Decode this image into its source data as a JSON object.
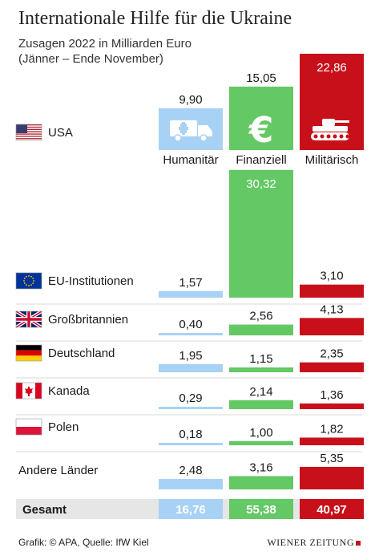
{
  "title": "Internationale Hilfe für die Ukraine",
  "subtitle_line1": "Zusagen 2022 in Milliarden Euro",
  "subtitle_line2": "(Jänner – Ende November)",
  "source": "Grafik: © APA, Quelle: IfW Kiel",
  "logo": "WIENER ZEITUNG",
  "colors": {
    "Humanitär": "#a8d2f5",
    "Finanziell": "#64c864",
    "Militärisch": "#c8101a",
    "total_band": "#e6e6e6"
  },
  "icons": [
    "ambulance-icon",
    "euro-icon",
    "tank-icon"
  ],
  "chart_data": {
    "type": "bar",
    "categories": [
      "Humanitär",
      "Finanziell",
      "Militärisch"
    ],
    "rows": [
      {
        "label": "USA",
        "flag": "us-flag-icon",
        "values": [
          9.9,
          15.05,
          22.86
        ],
        "value_labels": [
          "9,90",
          "15,05",
          "22,86"
        ]
      },
      {
        "label": "EU-Institutionen",
        "flag": "eu-flag-icon",
        "values": [
          1.57,
          30.32,
          3.1
        ],
        "value_labels": [
          "1,57",
          "30,32",
          "3,10"
        ]
      },
      {
        "label": "Großbritannien",
        "flag": "uk-flag-icon",
        "values": [
          0.4,
          2.56,
          4.13
        ],
        "value_labels": [
          "0,40",
          "2,56",
          "4,13"
        ]
      },
      {
        "label": "Deutschland",
        "flag": "de-flag-icon",
        "values": [
          1.95,
          1.15,
          2.35
        ],
        "value_labels": [
          "1,95",
          "1,15",
          "2,35"
        ]
      },
      {
        "label": "Kanada",
        "flag": "ca-flag-icon",
        "values": [
          0.29,
          2.14,
          1.36
        ],
        "value_labels": [
          "0,29",
          "2,14",
          "1,36"
        ]
      },
      {
        "label": "Polen",
        "flag": "pl-flag-icon",
        "values": [
          0.18,
          1.0,
          1.82
        ],
        "value_labels": [
          "0,18",
          "1,00",
          "1,82"
        ]
      },
      {
        "label": "Andere Länder",
        "flag": null,
        "values": [
          2.48,
          3.16,
          5.35
        ],
        "value_labels": [
          "2,48",
          "3,16",
          "5,35"
        ]
      }
    ],
    "total": {
      "label": "Gesamt",
      "values": [
        16.76,
        55.38,
        40.97
      ],
      "value_labels": [
        "16,76",
        "55,38",
        "40,97"
      ]
    }
  }
}
